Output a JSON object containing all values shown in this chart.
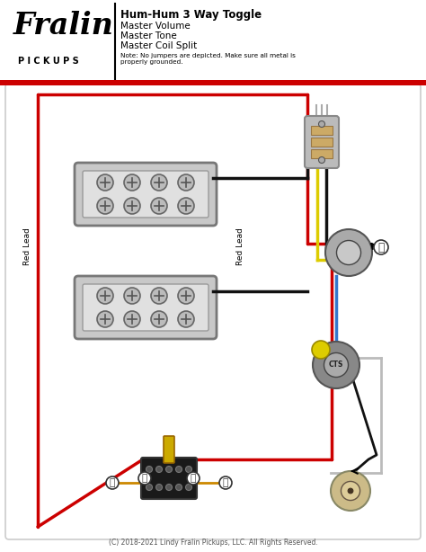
{
  "title": "Hum-Hum 3 Way Toggle",
  "subtitle_lines": [
    "Master Volume",
    "Master Tone",
    "Master Coil Split"
  ],
  "note": "Note: No jumpers are depicted. Make sure all metal is\nproperly grounded.",
  "copyright": "(C) 2018-2021 Lindy Fralin Pickups, LLC. All Rights Reserved.",
  "bg_color": "#ffffff",
  "red": "#cc0000",
  "black": "#111111",
  "yellow": "#ddcc00",
  "blue": "#3377cc",
  "orange": "#cc8800",
  "pickup_fill": "#d0d0d0",
  "pickup_stroke": "#888888"
}
